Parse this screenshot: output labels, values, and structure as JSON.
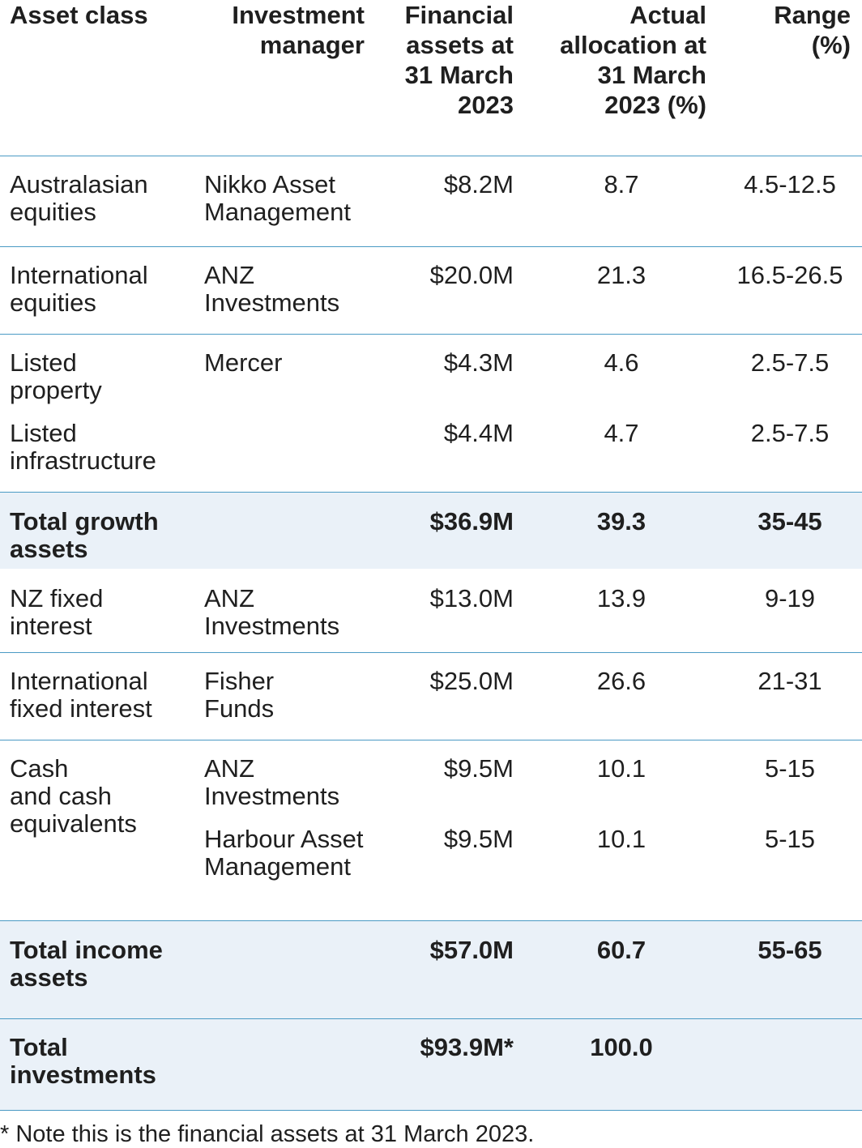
{
  "headers": {
    "asset_class": "Asset class",
    "manager": [
      "Investment",
      "manager"
    ],
    "assets": [
      "Financial",
      "assets at",
      "31 March",
      "2023"
    ],
    "allocation": [
      "Actual",
      "allocation at",
      "31 March",
      "2023 (%)"
    ],
    "range": [
      "Range",
      "(%)"
    ]
  },
  "rows": {
    "australasian": {
      "asset": [
        "Australasian",
        "equities"
      ],
      "manager": [
        "Nikko Asset",
        "Management"
      ],
      "assets": "$8.2M",
      "allocation": "8.7",
      "range": "4.5-12.5"
    },
    "international_eq": {
      "asset": [
        "International",
        "equities"
      ],
      "manager": [
        "ANZ",
        "Investments"
      ],
      "assets": "$20.0M",
      "allocation": "21.3",
      "range": "16.5-26.5"
    },
    "listed_property": {
      "asset": [
        "Listed",
        "property"
      ],
      "manager": [
        "Mercer"
      ],
      "assets": "$4.3M",
      "allocation": "4.6",
      "range": "2.5-7.5"
    },
    "listed_infra": {
      "asset": [
        "Listed",
        "infrastructure"
      ],
      "assets": "$4.4M",
      "allocation": "4.7",
      "range": "2.5-7.5"
    },
    "total_growth": {
      "asset": [
        "Total growth",
        "assets"
      ],
      "assets": "$36.9M",
      "allocation": "39.3",
      "range": "35-45"
    },
    "nz_fixed": {
      "asset": [
        "NZ fixed",
        "interest"
      ],
      "manager": [
        "ANZ",
        "Investments"
      ],
      "assets": "$13.0M",
      "allocation": "13.9",
      "range": "9-19"
    },
    "intl_fixed": {
      "asset": [
        "International",
        "fixed interest"
      ],
      "manager": [
        "Fisher",
        "Funds"
      ],
      "assets": "$25.0M",
      "allocation": "26.6",
      "range": "21-31"
    },
    "cash_anz": {
      "asset": [
        "Cash",
        "and cash",
        "equivalents"
      ],
      "manager": [
        "ANZ",
        "Investments"
      ],
      "assets": "$9.5M",
      "allocation": "10.1",
      "range": "5-15"
    },
    "cash_harbour": {
      "manager": [
        "Harbour Asset",
        "Management"
      ],
      "assets": "$9.5M",
      "allocation": "10.1",
      "range": "5-15"
    },
    "total_income": {
      "asset": [
        "Total income",
        "assets"
      ],
      "assets": "$57.0M",
      "allocation": "60.7",
      "range": "55-65"
    },
    "total_investments": {
      "asset": [
        "Total",
        "investments"
      ],
      "assets": "$93.9M*",
      "allocation": "100.0"
    }
  },
  "footnote": "* Note this is the financial assets at 31 March 2023."
}
